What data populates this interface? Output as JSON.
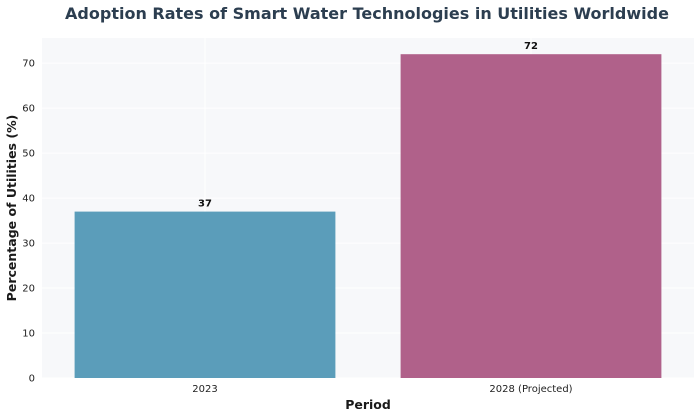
{
  "chart_data": {
    "type": "bar",
    "title": "Adoption Rates of Smart Water Technologies in Utilities Worldwide",
    "xlabel": "Period",
    "ylabel": "Percentage of Utilities (%)",
    "categories": [
      "2023",
      "2028 (Projected)"
    ],
    "values": [
      37,
      72
    ],
    "data_labels": [
      "37",
      "72"
    ],
    "ylim": [
      0,
      75.6
    ],
    "yticks": [
      0,
      10,
      20,
      30,
      40,
      50,
      60,
      70
    ],
    "ytick_labels": [
      "0",
      "10",
      "20",
      "30",
      "40",
      "50",
      "60",
      "70"
    ],
    "grid": true,
    "colors": [
      "#5b9dba",
      "#b0618a"
    ],
    "background": "#f7f8fa"
  }
}
